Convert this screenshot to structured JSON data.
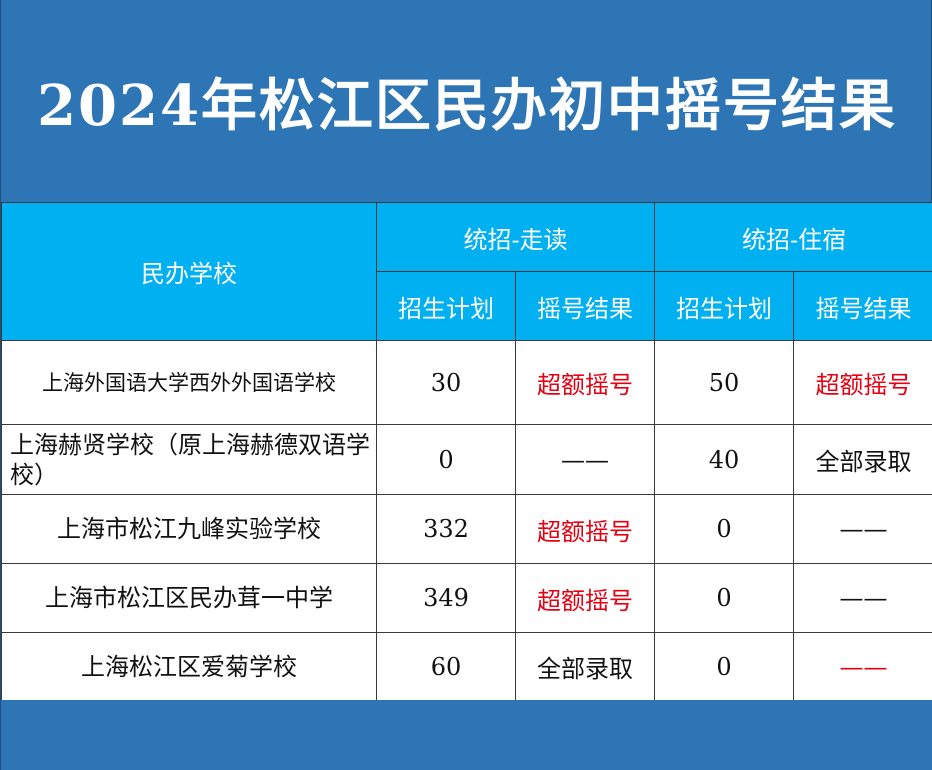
{
  "title": "2024年松江区民办初中摇号结果",
  "table": {
    "col_school": "民办学校",
    "group_walk": "统招-走读",
    "group_board": "统招-住宿",
    "sub_plan": "招生计划",
    "sub_result": "摇号结果",
    "rows": [
      {
        "school": "上海外国语大学西外外国语学校",
        "walk_plan": "30",
        "walk_result": "超额摇号",
        "board_plan": "50",
        "board_result": "超额摇号"
      },
      {
        "school": "上海赫贤学校（原上海赫德双语学校）",
        "walk_plan": "0",
        "walk_result": "——",
        "board_plan": "40",
        "board_result": "全部录取"
      },
      {
        "school": "上海市松江九峰实验学校",
        "walk_plan": "332",
        "walk_result": "超额摇号",
        "board_plan": "0",
        "board_result": "——"
      },
      {
        "school": "上海市松江区民办茸一中学",
        "walk_plan": "349",
        "walk_result": "超额摇号",
        "board_plan": "0",
        "board_result": "——"
      },
      {
        "school": "上海松江区爱菊学校",
        "walk_plan": "60",
        "walk_result": "全部录取",
        "board_plan": "0",
        "board_result": "——"
      }
    ]
  },
  "colors": {
    "background": "#2E75B6",
    "header": "#00B0F0",
    "highlight_red": "#E60012"
  }
}
